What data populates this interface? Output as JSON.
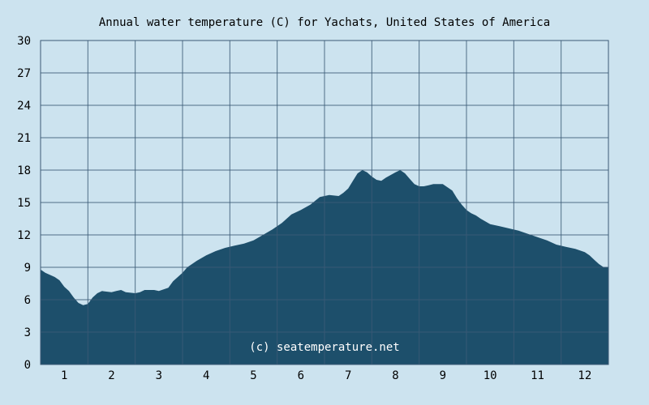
{
  "chart_data": {
    "type": "area",
    "title": "Annual water temperature (C) for Yachats, United States of America",
    "xlabel": "",
    "ylabel": "",
    "x_ticks": [
      "1",
      "2",
      "3",
      "4",
      "5",
      "6",
      "7",
      "8",
      "9",
      "10",
      "11",
      "12"
    ],
    "y_ticks": [
      0,
      3,
      6,
      9,
      12,
      15,
      18,
      21,
      24,
      27,
      30
    ],
    "ylim": [
      0,
      30
    ],
    "xlim": [
      0.5,
      12.5
    ],
    "grid": true,
    "credit": "(c) seatemperature.net",
    "fill_color": "#1d4f6b",
    "background_color": "#cce3ef",
    "grid_color": "#3b5a76",
    "series": [
      {
        "x": [
          0.5,
          0.6,
          0.8,
          0.9,
          1.0,
          1.1,
          1.2,
          1.3,
          1.4,
          1.5,
          1.6,
          1.7,
          1.8,
          2.0,
          2.1,
          2.2,
          2.3,
          2.5,
          2.6,
          2.7,
          2.9,
          3.0,
          3.2,
          3.3,
          3.5,
          3.6,
          3.8,
          4.0,
          4.2,
          4.4,
          4.6,
          4.8,
          5.0,
          5.2,
          5.4,
          5.6,
          5.8,
          6.0,
          6.2,
          6.4,
          6.6,
          6.8,
          6.9,
          7.0,
          7.1,
          7.2,
          7.3,
          7.4,
          7.5,
          7.6,
          7.7,
          7.8,
          8.0,
          8.1,
          8.2,
          8.3,
          8.4,
          8.5,
          8.6,
          8.7,
          8.8,
          9.0,
          9.2,
          9.3,
          9.4,
          9.5,
          9.6,
          9.7,
          9.8,
          10.0,
          10.2,
          10.4,
          10.6,
          10.8,
          11.0,
          11.2,
          11.4,
          11.6,
          11.8,
          12.0,
          12.1,
          12.2,
          12.3,
          12.4,
          12.5
        ],
        "values": [
          8.8,
          8.5,
          8.1,
          7.8,
          7.2,
          6.8,
          6.2,
          5.7,
          5.5,
          5.6,
          6.2,
          6.6,
          6.8,
          6.7,
          6.8,
          6.9,
          6.7,
          6.6,
          6.7,
          6.9,
          6.9,
          6.8,
          7.1,
          7.7,
          8.5,
          9.0,
          9.6,
          10.1,
          10.5,
          10.8,
          11.0,
          11.2,
          11.5,
          12.0,
          12.5,
          13.1,
          13.9,
          14.3,
          14.8,
          15.5,
          15.7,
          15.6,
          15.9,
          16.3,
          17.0,
          17.7,
          18.0,
          17.8,
          17.4,
          17.1,
          17.0,
          17.3,
          17.8,
          18.0,
          17.7,
          17.2,
          16.7,
          16.5,
          16.5,
          16.6,
          16.7,
          16.7,
          16.1,
          15.4,
          14.8,
          14.3,
          14.0,
          13.8,
          13.5,
          13.0,
          12.8,
          12.6,
          12.4,
          12.1,
          11.8,
          11.5,
          11.1,
          10.9,
          10.7,
          10.4,
          10.1,
          9.7,
          9.3,
          9.0,
          9.0
        ]
      }
    ]
  }
}
